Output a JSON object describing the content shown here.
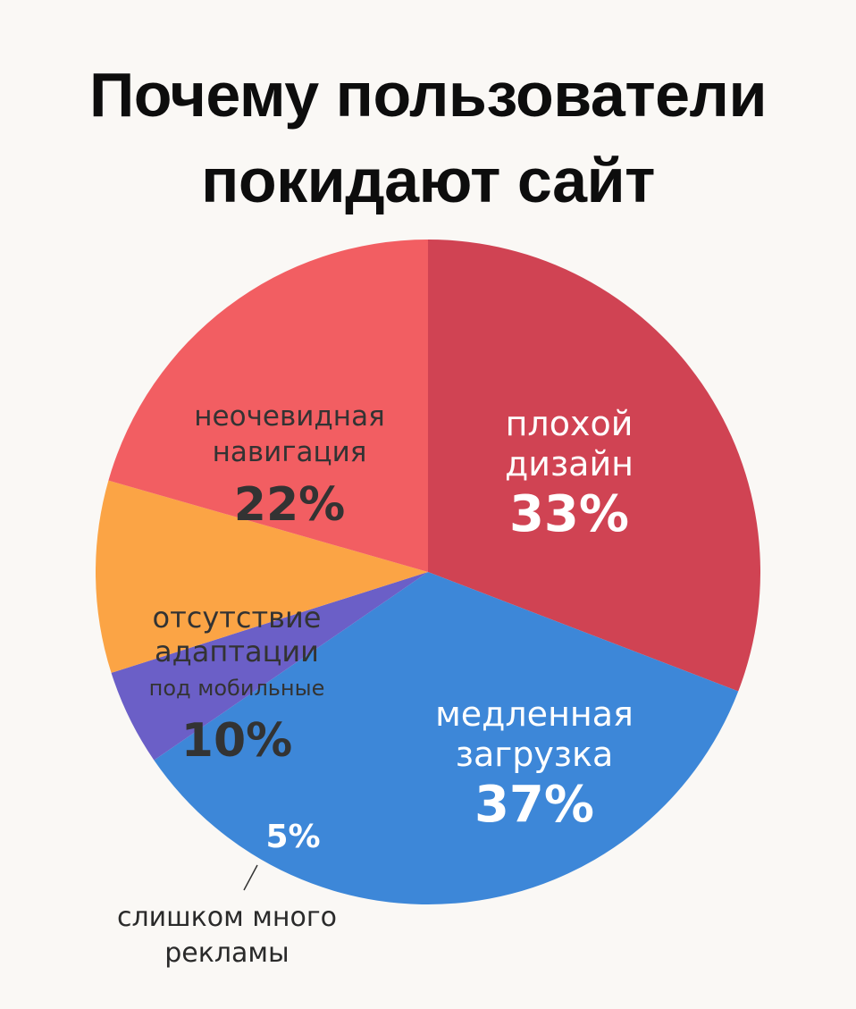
{
  "chart_data": {
    "type": "pie",
    "title_lines": [
      "Почему пользователи",
      "покидают сайт"
    ],
    "slices": [
      {
        "label_lines": [
          "плохой",
          "дизайн"
        ],
        "value": 33,
        "value_label": "33%",
        "color": "#d04353",
        "text_color": "#ffffff"
      },
      {
        "label_lines": [
          "медленная",
          "загрузка"
        ],
        "value": 37,
        "value_label": "37%",
        "color": "#3d87d8",
        "text_color": "#ffffff"
      },
      {
        "label_lines": [],
        "value": 5,
        "value_label": "5%",
        "color": "#6b5fc7",
        "text_color": "#ffffff",
        "outside_label_lines": [
          "слишком много",
          "рекламы"
        ]
      },
      {
        "label_lines": [
          "отсутствие",
          "адаптации",
          "под мобильные"
        ],
        "value": 10,
        "value_label": "10%",
        "color": "#fba445",
        "text_color": "#333333"
      },
      {
        "label_lines": [
          "неочевидная",
          "навигация"
        ],
        "value": 22,
        "value_label": "22%",
        "color": "#f25e62",
        "text_color": "#333333"
      }
    ]
  }
}
